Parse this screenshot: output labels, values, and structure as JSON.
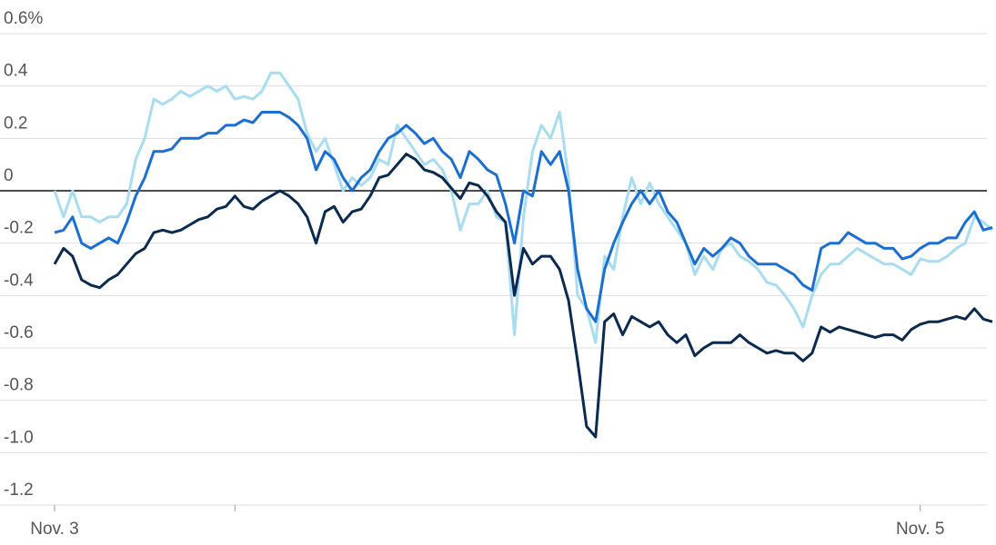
{
  "chart_data": {
    "type": "line",
    "x": [
      0,
      0.5,
      1,
      1.5,
      2,
      2.5,
      3,
      3.5,
      4,
      4.5,
      5,
      5.5,
      6,
      6.5,
      7,
      7.5,
      8,
      8.5,
      9,
      9.5,
      10,
      10.5,
      11,
      11.5,
      12,
      12.5,
      13,
      13.5,
      14,
      14.5,
      15,
      15.5,
      16,
      16.5,
      17,
      17.5,
      18,
      18.5,
      19,
      19.5,
      20,
      20.5,
      21,
      21.5,
      22,
      22.5,
      23,
      23.5,
      24,
      24.5,
      25,
      25.5,
      26,
      26.5,
      27,
      27.5,
      28,
      28.5,
      29,
      29.5,
      30,
      30.5,
      31,
      31.5,
      32,
      32.5,
      33,
      33.5,
      34,
      34.5,
      35,
      35.5,
      36,
      36.5,
      37,
      37.5,
      38,
      38.5,
      39,
      39.5,
      40,
      40.5,
      41,
      41.5,
      42,
      42.5,
      43,
      43.5,
      44,
      44.5,
      45,
      45.5,
      46,
      46.5,
      47,
      47.5,
      48,
      48.5,
      49,
      49.5,
      50,
      50.5,
      51,
      51.5,
      52
    ],
    "series": [
      {
        "color": "#a8dcf0",
        "values": [
          0.0,
          -0.1,
          0.0,
          -0.1,
          -0.1,
          -0.12,
          -0.1,
          -0.1,
          -0.05,
          0.12,
          0.2,
          0.35,
          0.33,
          0.35,
          0.38,
          0.36,
          0.38,
          0.4,
          0.38,
          0.4,
          0.35,
          0.36,
          0.35,
          0.38,
          0.45,
          0.45,
          0.4,
          0.35,
          0.22,
          0.15,
          0.2,
          0.1,
          0.0,
          0.05,
          0.02,
          0.05,
          0.12,
          0.1,
          0.25,
          0.2,
          0.15,
          0.1,
          0.12,
          0.08,
          0.0,
          -0.15,
          -0.05,
          -0.05,
          0.0,
          -0.1,
          -0.12,
          -0.55,
          -0.1,
          0.15,
          0.25,
          0.2,
          0.3,
          0.05,
          -0.4,
          -0.45,
          -0.58,
          -0.25,
          -0.3,
          -0.1,
          0.05,
          -0.05,
          0.03,
          -0.05,
          -0.1,
          -0.15,
          -0.2,
          -0.32,
          -0.25,
          -0.3,
          -0.22,
          -0.2,
          -0.25,
          -0.27,
          -0.3,
          -0.35,
          -0.36,
          -0.4,
          -0.45,
          -0.52,
          -0.4,
          -0.32,
          -0.28,
          -0.28,
          -0.25,
          -0.22,
          -0.24,
          -0.26,
          -0.28,
          -0.28,
          -0.3,
          -0.32,
          -0.26,
          -0.27,
          -0.27,
          -0.25,
          -0.22,
          -0.2,
          -0.1,
          -0.12,
          -0.15
        ]
      },
      {
        "color": "#1a6fd0",
        "values": [
          -0.16,
          -0.15,
          -0.1,
          -0.2,
          -0.22,
          -0.2,
          -0.18,
          -0.2,
          -0.12,
          -0.02,
          0.05,
          0.15,
          0.15,
          0.16,
          0.2,
          0.2,
          0.2,
          0.22,
          0.22,
          0.25,
          0.25,
          0.27,
          0.26,
          0.3,
          0.3,
          0.3,
          0.28,
          0.25,
          0.2,
          0.08,
          0.15,
          0.12,
          0.05,
          0.0,
          0.05,
          0.08,
          0.15,
          0.2,
          0.22,
          0.25,
          0.22,
          0.18,
          0.2,
          0.15,
          0.12,
          0.05,
          0.15,
          0.12,
          0.08,
          0.06,
          -0.05,
          -0.2,
          0.0,
          -0.02,
          0.15,
          0.1,
          0.15,
          0.0,
          -0.3,
          -0.45,
          -0.5,
          -0.3,
          -0.2,
          -0.12,
          -0.05,
          0.0,
          -0.05,
          0.0,
          -0.08,
          -0.12,
          -0.2,
          -0.28,
          -0.22,
          -0.25,
          -0.22,
          -0.18,
          -0.2,
          -0.25,
          -0.28,
          -0.28,
          -0.28,
          -0.3,
          -0.32,
          -0.36,
          -0.38,
          -0.22,
          -0.2,
          -0.2,
          -0.16,
          -0.18,
          -0.2,
          -0.2,
          -0.22,
          -0.22,
          -0.26,
          -0.25,
          -0.22,
          -0.2,
          -0.2,
          -0.18,
          -0.18,
          -0.12,
          -0.08,
          -0.15,
          -0.14
        ]
      },
      {
        "color": "#0b2a4f",
        "values": [
          -0.28,
          -0.22,
          -0.25,
          -0.34,
          -0.36,
          -0.37,
          -0.34,
          -0.32,
          -0.28,
          -0.24,
          -0.22,
          -0.16,
          -0.15,
          -0.16,
          -0.15,
          -0.13,
          -0.11,
          -0.1,
          -0.07,
          -0.06,
          -0.02,
          -0.06,
          -0.07,
          -0.04,
          -0.02,
          0.0,
          -0.02,
          -0.05,
          -0.1,
          -0.2,
          -0.08,
          -0.06,
          -0.12,
          -0.08,
          -0.07,
          -0.02,
          0.05,
          0.06,
          0.1,
          0.14,
          0.12,
          0.08,
          0.07,
          0.05,
          0.01,
          -0.03,
          0.03,
          0.02,
          -0.02,
          -0.08,
          -0.12,
          -0.4,
          -0.22,
          -0.28,
          -0.25,
          -0.25,
          -0.3,
          -0.42,
          -0.65,
          -0.9,
          -0.94,
          -0.5,
          -0.47,
          -0.55,
          -0.48,
          -0.5,
          -0.52,
          -0.5,
          -0.55,
          -0.58,
          -0.55,
          -0.63,
          -0.6,
          -0.58,
          -0.58,
          -0.58,
          -0.55,
          -0.58,
          -0.6,
          -0.62,
          -0.61,
          -0.62,
          -0.62,
          -0.65,
          -0.62,
          -0.52,
          -0.54,
          -0.52,
          -0.53,
          -0.54,
          -0.55,
          -0.56,
          -0.55,
          -0.55,
          -0.57,
          -0.53,
          -0.51,
          -0.5,
          -0.5,
          -0.49,
          -0.48,
          -0.49,
          -0.45,
          -0.49,
          -0.5
        ]
      }
    ],
    "xlim": [
      0,
      52.2
    ],
    "xticks": [
      {
        "value": 0,
        "label": "Nov. 3"
      },
      {
        "value": 10,
        "label": null
      },
      {
        "value": 48,
        "label": "Nov. 5"
      }
    ],
    "ylim": [
      -1.2,
      0.6
    ],
    "yticks": [
      {
        "value": 0.6,
        "label": "0.6%"
      },
      0.4,
      0.2,
      0,
      -0.2,
      -0.4,
      -0.6,
      -0.8,
      {
        "value": -1,
        "label": "-1.0"
      },
      -1.2
    ],
    "grid": true
  }
}
